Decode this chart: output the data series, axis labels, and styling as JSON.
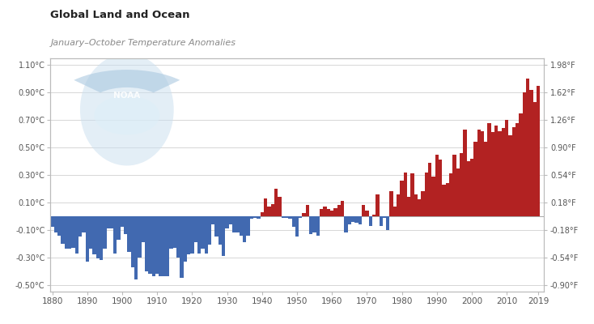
{
  "title": "Global Land and Ocean",
  "subtitle": "January–October Temperature Anomalies",
  "xlim": [
    1879.5,
    2020.5
  ],
  "ylim_c": [
    -0.55,
    1.15
  ],
  "yticks_c": [
    -0.5,
    -0.3,
    -0.1,
    0.1,
    0.3,
    0.5,
    0.7,
    0.9,
    1.1
  ],
  "ytick_labels_c": [
    "-0.50°C",
    "-0.30°C",
    "-0.10°C",
    "0.10°C",
    "0.30°C",
    "0.50°C",
    "0.70°C",
    "0.90°C",
    "1.10°C"
  ],
  "ytick_labels_f": [
    "-0.90°F",
    "-0.54°F",
    "-0.18°F",
    "0.18°F",
    "0.54°F",
    "0.90°F",
    "1.26°F",
    "1.62°F",
    "1.98°F"
  ],
  "xticks": [
    1880,
    1890,
    1900,
    1910,
    1920,
    1930,
    1940,
    1950,
    1960,
    1970,
    1980,
    1990,
    2000,
    2010,
    2019
  ],
  "color_positive": "#b22222",
  "color_negative": "#4169b0",
  "background_color": "#ffffff",
  "grid_color": "#d0d0d0",
  "title_color": "#222222",
  "subtitle_color": "#888888",
  "noaa_color": "#c8dff0",
  "years": [
    1880,
    1881,
    1882,
    1883,
    1884,
    1885,
    1886,
    1887,
    1888,
    1889,
    1890,
    1891,
    1892,
    1893,
    1894,
    1895,
    1896,
    1897,
    1898,
    1899,
    1900,
    1901,
    1902,
    1903,
    1904,
    1905,
    1906,
    1907,
    1908,
    1909,
    1910,
    1911,
    1912,
    1913,
    1914,
    1915,
    1916,
    1917,
    1918,
    1919,
    1920,
    1921,
    1922,
    1923,
    1924,
    1925,
    1926,
    1927,
    1928,
    1929,
    1930,
    1931,
    1932,
    1933,
    1934,
    1935,
    1936,
    1937,
    1938,
    1939,
    1940,
    1941,
    1942,
    1943,
    1944,
    1945,
    1946,
    1947,
    1948,
    1949,
    1950,
    1951,
    1952,
    1953,
    1954,
    1955,
    1956,
    1957,
    1958,
    1959,
    1960,
    1961,
    1962,
    1963,
    1964,
    1965,
    1966,
    1967,
    1968,
    1969,
    1970,
    1971,
    1972,
    1973,
    1974,
    1975,
    1976,
    1977,
    1978,
    1979,
    1980,
    1981,
    1982,
    1983,
    1984,
    1985,
    1986,
    1987,
    1988,
    1989,
    1990,
    1991,
    1992,
    1993,
    1994,
    1995,
    1996,
    1997,
    1998,
    1999,
    2000,
    2001,
    2002,
    2003,
    2004,
    2005,
    2006,
    2007,
    2008,
    2009,
    2010,
    2011,
    2012,
    2013,
    2014,
    2015,
    2016,
    2017,
    2018,
    2019
  ],
  "anomalies": [
    -0.08,
    -0.12,
    -0.14,
    -0.2,
    -0.24,
    -0.24,
    -0.23,
    -0.27,
    -0.15,
    -0.12,
    -0.33,
    -0.24,
    -0.28,
    -0.31,
    -0.32,
    -0.24,
    -0.09,
    -0.09,
    -0.27,
    -0.17,
    -0.08,
    -0.13,
    -0.26,
    -0.37,
    -0.46,
    -0.3,
    -0.19,
    -0.4,
    -0.42,
    -0.44,
    -0.42,
    -0.44,
    -0.44,
    -0.44,
    -0.24,
    -0.23,
    -0.3,
    -0.45,
    -0.33,
    -0.28,
    -0.27,
    -0.19,
    -0.27,
    -0.24,
    -0.27,
    -0.21,
    -0.06,
    -0.15,
    -0.21,
    -0.29,
    -0.09,
    -0.06,
    -0.12,
    -0.12,
    -0.14,
    -0.19,
    -0.14,
    -0.02,
    -0.01,
    -0.02,
    0.03,
    0.13,
    0.07,
    0.09,
    0.2,
    0.14,
    -0.01,
    -0.01,
    -0.02,
    -0.08,
    -0.15,
    -0.01,
    0.02,
    0.08,
    -0.13,
    -0.12,
    -0.14,
    0.05,
    0.07,
    0.05,
    0.04,
    0.06,
    0.08,
    0.11,
    -0.12,
    -0.06,
    -0.04,
    -0.05,
    -0.06,
    0.08,
    0.04,
    -0.07,
    0.01,
    0.16,
    -0.07,
    -0.01,
    -0.1,
    0.18,
    0.07,
    0.16,
    0.26,
    0.32,
    0.14,
    0.31,
    0.16,
    0.12,
    0.18,
    0.32,
    0.39,
    0.29,
    0.45,
    0.41,
    0.23,
    0.24,
    0.31,
    0.45,
    0.35,
    0.46,
    0.63,
    0.4,
    0.42,
    0.54,
    0.63,
    0.62,
    0.54,
    0.68,
    0.61,
    0.66,
    0.62,
    0.64,
    0.7,
    0.59,
    0.65,
    0.68,
    0.75,
    0.9,
    1.0,
    0.92,
    0.83,
    0.95
  ]
}
